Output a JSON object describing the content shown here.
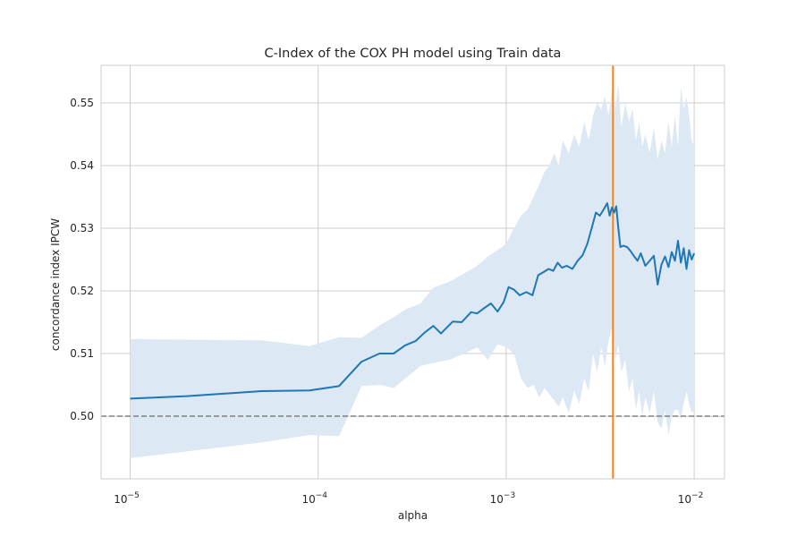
{
  "chart_data": {
    "type": "line",
    "title": "C-Index of the COX PH model using Train data",
    "xlabel": "alpha",
    "ylabel": "concordance index IPCW",
    "x_scale": "log",
    "xlim": [
      7e-06,
      0.0145
    ],
    "ylim": [
      0.49,
      0.556
    ],
    "x_ticks": [
      {
        "value": 1e-05,
        "base": "10",
        "exp": "−5"
      },
      {
        "value": 0.0001,
        "base": "10",
        "exp": "−4"
      },
      {
        "value": 0.001,
        "base": "10",
        "exp": "−3"
      },
      {
        "value": 0.01,
        "base": "10",
        "exp": "−2"
      }
    ],
    "y_ticks": [
      {
        "value": 0.5,
        "label": "0.50"
      },
      {
        "value": 0.51,
        "label": "0.51"
      },
      {
        "value": 0.52,
        "label": "0.52"
      },
      {
        "value": 0.53,
        "label": "0.53"
      },
      {
        "value": 0.54,
        "label": "0.54"
      },
      {
        "value": 0.55,
        "label": "0.55"
      }
    ],
    "grid": true,
    "colors": {
      "mean_line": "#1f77b4",
      "band": "#dce8f3",
      "vline": "#ff7f0e",
      "hline": "#808080",
      "grid": "#cccccc"
    },
    "series": [
      {
        "kind": "mean",
        "x": [
          1e-05,
          2e-05,
          5e-05,
          9e-05,
          0.000129,
          0.00017,
          0.000212,
          0.000252,
          0.00029,
          0.00033,
          0.00037,
          0.00041,
          0.00045,
          0.00052,
          0.00058,
          0.00065,
          0.0007,
          0.00076,
          0.00083,
          0.0009,
          0.00097,
          0.00103,
          0.0011,
          0.00118,
          0.00128,
          0.00138,
          0.00148,
          0.00158,
          0.00168,
          0.00178,
          0.00188,
          0.00198,
          0.0021,
          0.00225,
          0.0024,
          0.00255,
          0.0027,
          0.00285,
          0.003,
          0.00315,
          0.0033,
          0.00345,
          0.00355,
          0.00365,
          0.00375,
          0.00385,
          0.00395,
          0.00405,
          0.0042,
          0.0044,
          0.0046,
          0.0048,
          0.005,
          0.0052,
          0.0055,
          0.0058,
          0.0061,
          0.0064,
          0.0067,
          0.007,
          0.0073,
          0.0076,
          0.0079,
          0.0082,
          0.0085,
          0.0088,
          0.0091,
          0.0094,
          0.0097,
          0.01
        ],
        "y": [
          0.5028,
          0.5032,
          0.504,
          0.5041,
          0.5048,
          0.5087,
          0.51,
          0.51,
          0.5113,
          0.512,
          0.5134,
          0.5144,
          0.5132,
          0.5151,
          0.515,
          0.5166,
          0.5164,
          0.5172,
          0.518,
          0.5167,
          0.5182,
          0.5206,
          0.5202,
          0.5193,
          0.5198,
          0.5193,
          0.5225,
          0.523,
          0.5235,
          0.5232,
          0.5245,
          0.5237,
          0.524,
          0.5235,
          0.5248,
          0.5257,
          0.5275,
          0.53,
          0.5325,
          0.532,
          0.533,
          0.534,
          0.532,
          0.5333,
          0.5325,
          0.5335,
          0.53,
          0.527,
          0.5272,
          0.527,
          0.5263,
          0.5255,
          0.5248,
          0.526,
          0.524,
          0.5248,
          0.5256,
          0.521,
          0.5242,
          0.5255,
          0.5238,
          0.5262,
          0.5248,
          0.528,
          0.5245,
          0.5268,
          0.5235,
          0.5265,
          0.525,
          0.526
        ]
      },
      {
        "kind": "band_upper",
        "x": [
          1e-05,
          5e-05,
          9e-05,
          0.000129,
          0.00017,
          0.000212,
          0.000252,
          0.00029,
          0.00035,
          0.00041,
          0.0005,
          0.0006,
          0.0007,
          0.0008,
          0.0009,
          0.001,
          0.0011,
          0.0012,
          0.0013,
          0.0014,
          0.0015,
          0.0016,
          0.0017,
          0.0018,
          0.0019,
          0.002,
          0.00215,
          0.0023,
          0.00245,
          0.0026,
          0.00275,
          0.0029,
          0.00305,
          0.0032,
          0.00335,
          0.0035,
          0.00365,
          0.0038,
          0.00395,
          0.0041,
          0.0043,
          0.0045,
          0.0047,
          0.0049,
          0.0051,
          0.0053,
          0.0055,
          0.0058,
          0.0061,
          0.0064,
          0.0067,
          0.007,
          0.0073,
          0.0076,
          0.0079,
          0.0082,
          0.0085,
          0.0088,
          0.0091,
          0.0094,
          0.0097,
          0.01
        ],
        "y": [
          0.5123,
          0.5121,
          0.5112,
          0.5126,
          0.5125,
          0.5145,
          0.5158,
          0.517,
          0.518,
          0.5205,
          0.5215,
          0.5228,
          0.524,
          0.5255,
          0.5265,
          0.5275,
          0.53,
          0.532,
          0.533,
          0.535,
          0.537,
          0.539,
          0.54,
          0.542,
          0.54,
          0.544,
          0.542,
          0.545,
          0.543,
          0.547,
          0.544,
          0.548,
          0.55,
          0.549,
          0.551,
          0.548,
          0.552,
          0.549,
          0.553,
          0.546,
          0.55,
          0.547,
          0.549,
          0.544,
          0.547,
          0.543,
          0.545,
          0.542,
          0.546,
          0.541,
          0.544,
          0.542,
          0.547,
          0.543,
          0.548,
          0.543,
          0.5525,
          0.549,
          0.551,
          0.548,
          0.544,
          0.543
        ]
      },
      {
        "kind": "band_lower",
        "x": [
          1e-05,
          5e-05,
          9e-05,
          0.000129,
          0.00017,
          0.000212,
          0.000252,
          0.00029,
          0.00035,
          0.00041,
          0.0005,
          0.0006,
          0.0007,
          0.0008,
          0.0009,
          0.001,
          0.0011,
          0.0012,
          0.0013,
          0.0014,
          0.0015,
          0.0016,
          0.0017,
          0.0018,
          0.0019,
          0.002,
          0.00215,
          0.0023,
          0.00245,
          0.0026,
          0.00275,
          0.0029,
          0.00305,
          0.0032,
          0.00335,
          0.0035,
          0.00365,
          0.0038,
          0.00395,
          0.0041,
          0.0043,
          0.0045,
          0.0047,
          0.0049,
          0.0051,
          0.0053,
          0.0055,
          0.0058,
          0.0061,
          0.0064,
          0.0067,
          0.007,
          0.0073,
          0.0076,
          0.0079,
          0.0082,
          0.0085,
          0.0088,
          0.0091,
          0.0094,
          0.0097,
          0.01
        ],
        "y": [
          0.4933,
          0.4958,
          0.497,
          0.4968,
          0.5048,
          0.505,
          0.5045,
          0.506,
          0.508,
          0.5085,
          0.509,
          0.51,
          0.511,
          0.509,
          0.5115,
          0.511,
          0.51,
          0.506,
          0.5045,
          0.505,
          0.503,
          0.5045,
          0.5035,
          0.5025,
          0.5015,
          0.503,
          0.5005,
          0.504,
          0.502,
          0.506,
          0.504,
          0.51,
          0.507,
          0.511,
          0.508,
          0.512,
          0.514,
          0.509,
          0.5115,
          0.507,
          0.509,
          0.504,
          0.506,
          0.501,
          0.504,
          0.5,
          0.503,
          0.5005,
          0.504,
          0.499,
          0.498,
          0.501,
          0.497,
          0.5,
          0.501,
          0.501,
          0.4995,
          0.502,
          0.504,
          0.502,
          0.5005,
          0.501
        ]
      }
    ],
    "reference_lines": [
      {
        "kind": "horizontal",
        "style": "dashed",
        "y": 0.5
      },
      {
        "kind": "vertical",
        "style": "solid",
        "x": 0.0037
      }
    ]
  }
}
